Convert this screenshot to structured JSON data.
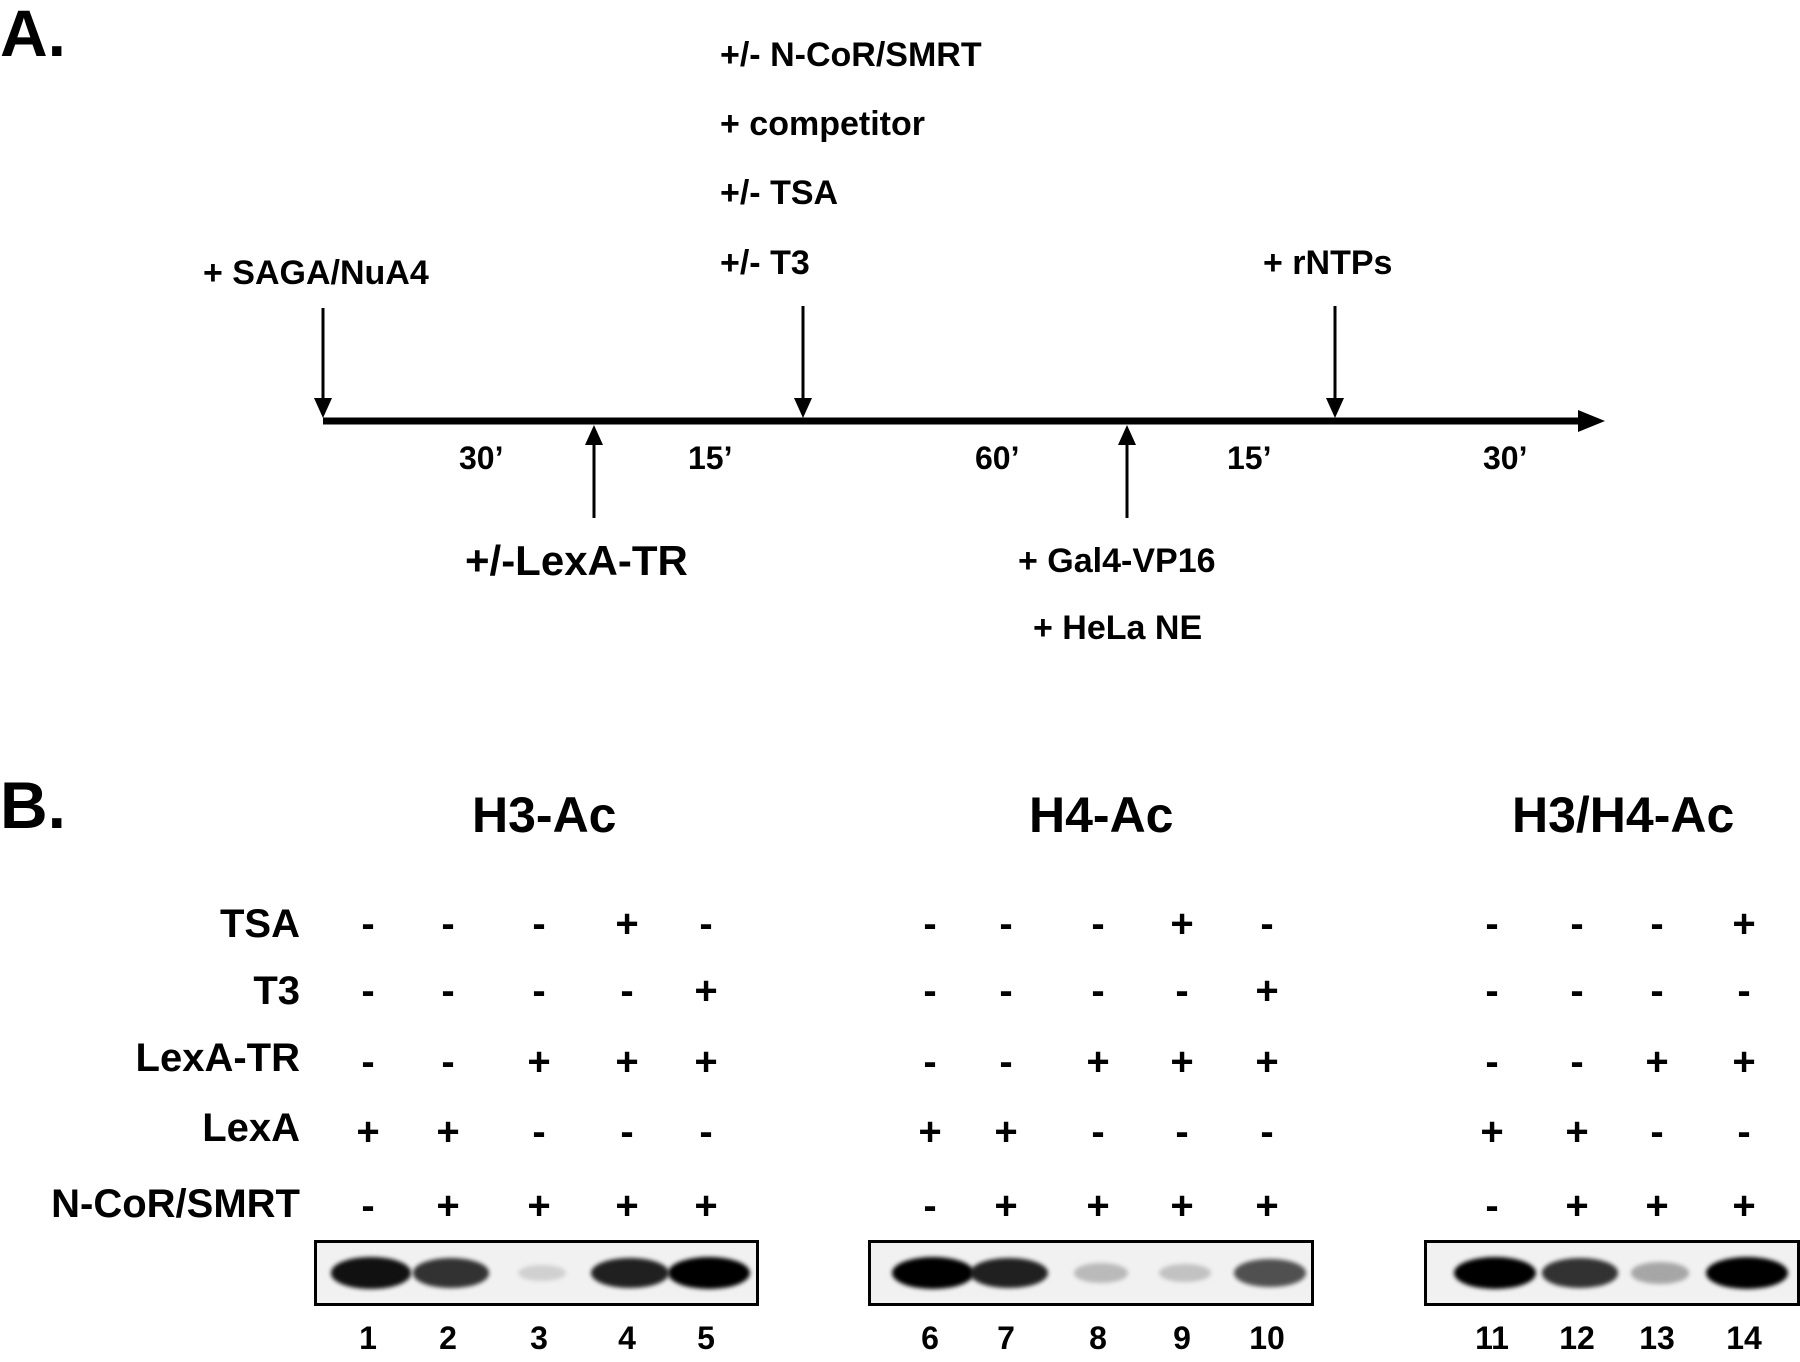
{
  "panel_a": {
    "label": "A.",
    "steps_top": [
      {
        "text": "+ SAGA/NuA4"
      },
      {
        "text": "+/- N-CoR/SMRT"
      },
      {
        "text": "+ competitor"
      },
      {
        "text": "+/- TSA"
      },
      {
        "text": "+/- T3"
      },
      {
        "text": "+ rNTPs"
      }
    ],
    "steps_bottom": [
      {
        "text": "+/-LexA-TR"
      },
      {
        "text": "+ Gal4-VP16"
      },
      {
        "text": "+ HeLa NE"
      }
    ],
    "durations": [
      "30’",
      "15’",
      "60’",
      "15’",
      "30’"
    ]
  },
  "panel_b": {
    "label": "B.",
    "row_labels": [
      "TSA",
      "T3",
      "LexA-TR",
      "LexA",
      "N-CoR/SMRT"
    ],
    "gels": [
      {
        "title": "H3-Ac",
        "lanes": [
          "1",
          "2",
          "3",
          "4",
          "5"
        ],
        "conditions": {
          "TSA": [
            "-",
            "-",
            "-",
            "+",
            "-"
          ],
          "T3": [
            "-",
            "-",
            "-",
            "-",
            "+"
          ],
          "LexA-TR": [
            "-",
            "-",
            "+",
            "+",
            "+"
          ],
          "LexA": [
            "+",
            "+",
            "-",
            "-",
            "-"
          ],
          "N-CoR/SMRT": [
            "-",
            "+",
            "+",
            "+",
            "+"
          ]
        },
        "band_intensity": [
          0.95,
          0.85,
          0.15,
          0.9,
          1.0
        ]
      },
      {
        "title": "H4-Ac",
        "lanes": [
          "6",
          "7",
          "8",
          "9",
          "10"
        ],
        "conditions": {
          "TSA": [
            "-",
            "-",
            "-",
            "+",
            "-"
          ],
          "T3": [
            "-",
            "-",
            "-",
            "-",
            "+"
          ],
          "LexA-TR": [
            "-",
            "-",
            "+",
            "+",
            "+"
          ],
          "LexA": [
            "+",
            "+",
            "-",
            "-",
            "-"
          ],
          "N-CoR/SMRT": [
            "-",
            "+",
            "+",
            "+",
            "+"
          ]
        },
        "band_intensity": [
          1.0,
          0.9,
          0.3,
          0.25,
          0.75
        ]
      },
      {
        "title": "H3/H4-Ac",
        "lanes": [
          "11",
          "12",
          "13",
          "14"
        ],
        "conditions": {
          "TSA": [
            "-",
            "-",
            "-",
            "+"
          ],
          "T3": [
            "-",
            "-",
            "-",
            "-"
          ],
          "LexA-TR": [
            "-",
            "-",
            "+",
            "+"
          ],
          "LexA": [
            "+",
            "+",
            "-",
            "-"
          ],
          "N-CoR/SMRT": [
            "-",
            "+",
            "+",
            "+"
          ]
        },
        "band_intensity": [
          1.0,
          0.85,
          0.4,
          1.0
        ]
      }
    ]
  }
}
